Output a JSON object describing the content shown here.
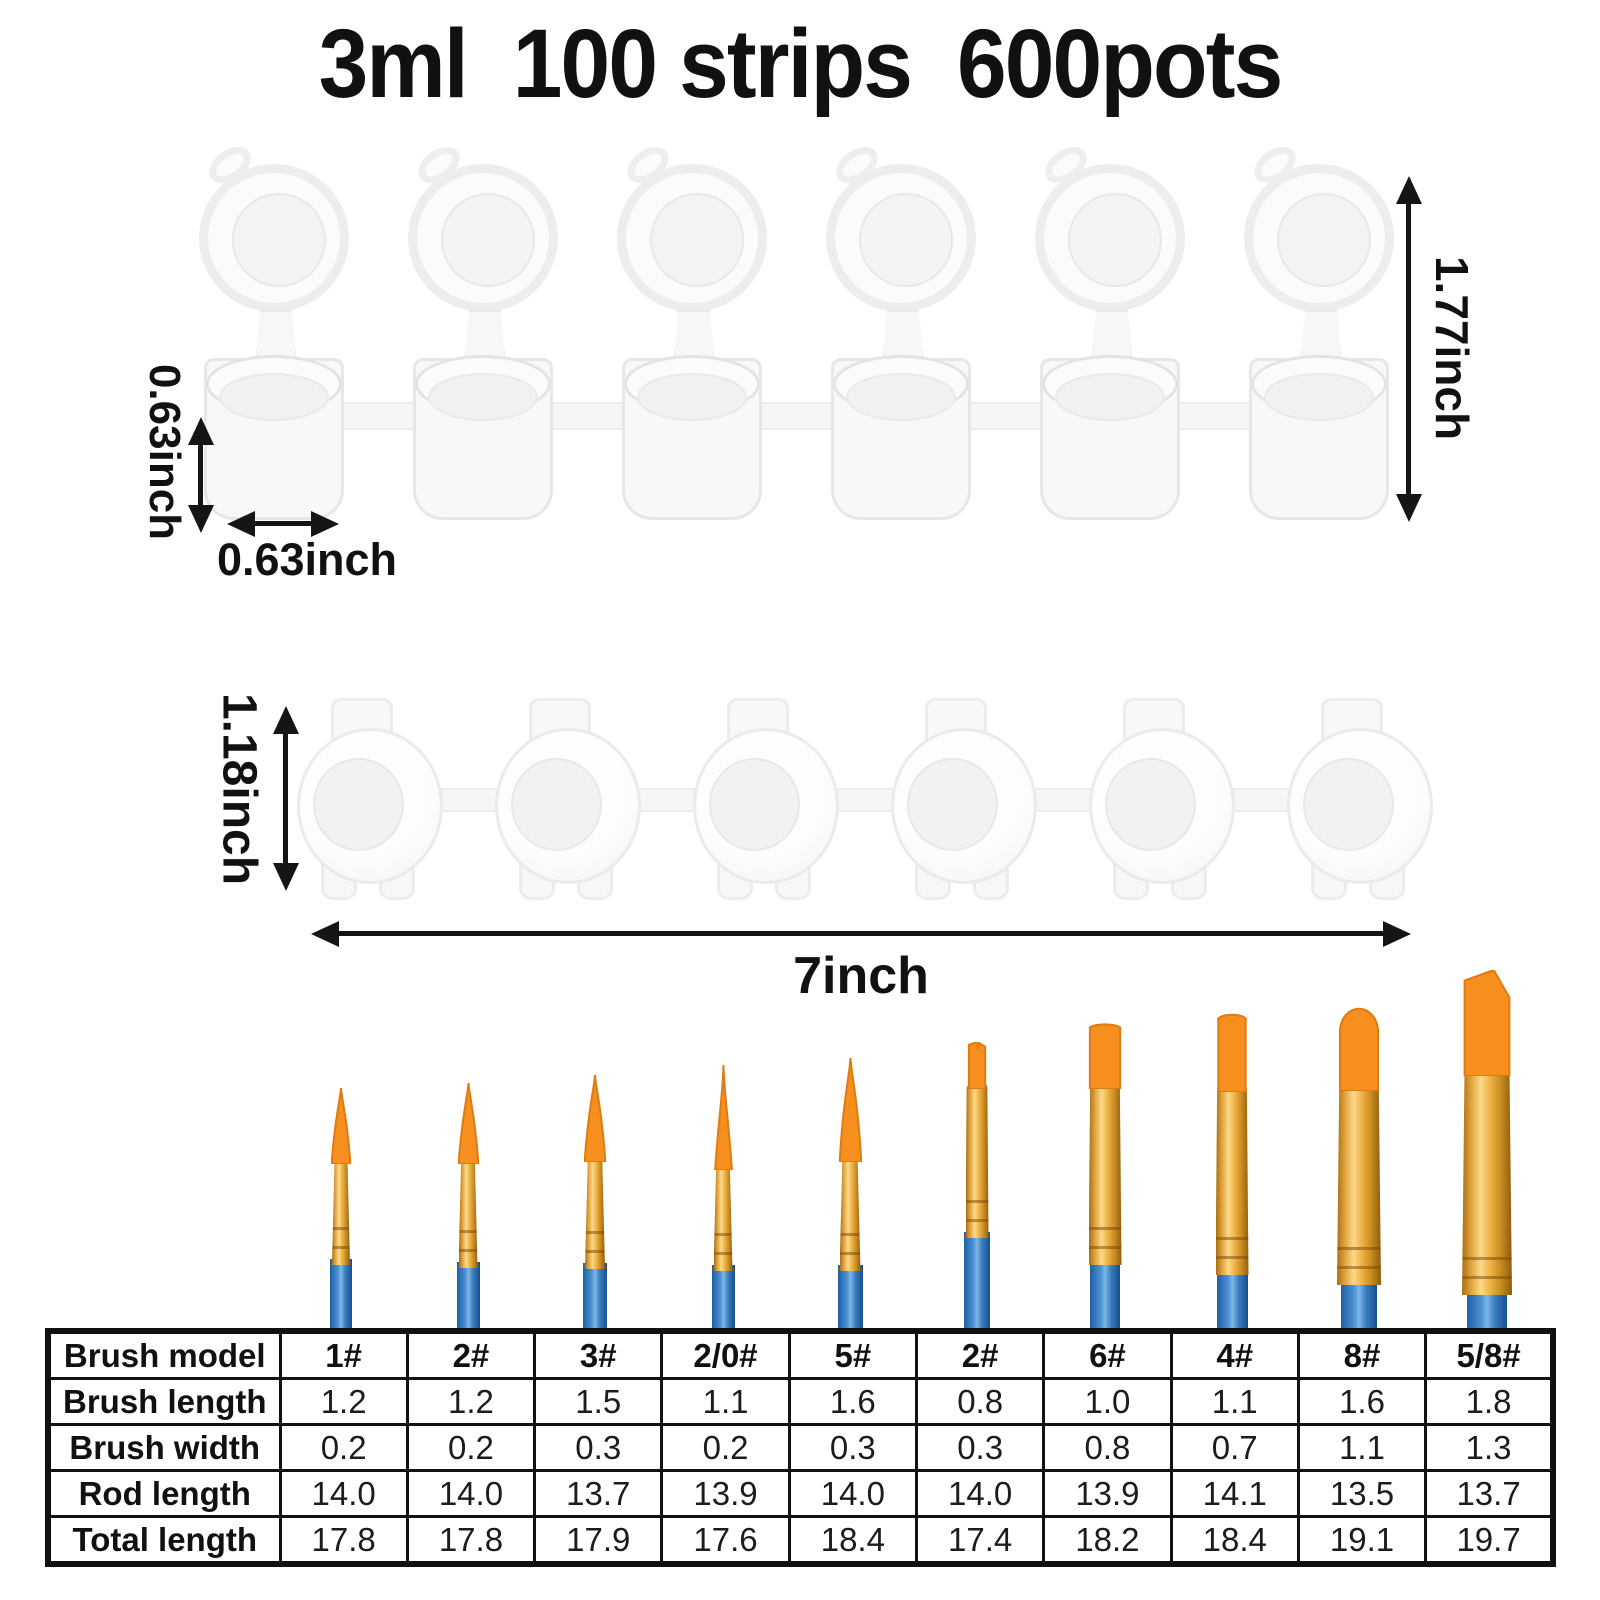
{
  "title": "3ml  100 strips  600pots",
  "pot_strip_open": {
    "pot_count": 6,
    "height_label": "1.77inch",
    "cup_height_label": "0.63inch",
    "cup_width_label": "0.63inch"
  },
  "pot_strip_closed": {
    "pot_count": 6,
    "height_label": "1.18inch",
    "length_label": "7inch"
  },
  "brushes": [
    {
      "model": "1#",
      "type": "round"
    },
    {
      "model": "2#",
      "type": "round"
    },
    {
      "model": "3#",
      "type": "round"
    },
    {
      "model": "2/0#",
      "type": "liner"
    },
    {
      "model": "5#",
      "type": "round"
    },
    {
      "model": "2#",
      "type": "flat-small"
    },
    {
      "model": "6#",
      "type": "flat"
    },
    {
      "model": "4#",
      "type": "flat"
    },
    {
      "model": "8#",
      "type": "filbert"
    },
    {
      "model": "5/8#",
      "type": "angled"
    }
  ],
  "spec_table": {
    "row_headers": [
      "Brush model",
      "Brush length",
      "Brush width",
      "Rod length",
      "Total length"
    ],
    "models": [
      "1#",
      "2#",
      "3#",
      "2/0#",
      "5#",
      "2#",
      "6#",
      "4#",
      "8#",
      "5/8#"
    ],
    "brush_length": [
      "1.2",
      "1.2",
      "1.5",
      "1.1",
      "1.6",
      "0.8",
      "1.0",
      "1.1",
      "1.6",
      "1.8"
    ],
    "brush_width": [
      "0.2",
      "0.2",
      "0.3",
      "0.2",
      "0.3",
      "0.3",
      "0.8",
      "0.7",
      "1.1",
      "1.3"
    ],
    "rod_length": [
      "14.0",
      "14.0",
      "13.7",
      "13.9",
      "14.0",
      "14.0",
      "13.9",
      "14.1",
      "13.5",
      "13.7"
    ],
    "total_length": [
      "17.8",
      "17.8",
      "17.9",
      "17.6",
      "18.4",
      "17.4",
      "18.2",
      "18.4",
      "19.1",
      "19.7"
    ]
  },
  "colors": {
    "bristle": "#f78f1e",
    "bristle_edge": "#e07b12",
    "ferrule_gold": "#e0a33c",
    "handle_blue": "#3a7cc0",
    "arrow": "#151515",
    "table_border": "#111111",
    "pot_outline": "#ececec"
  }
}
